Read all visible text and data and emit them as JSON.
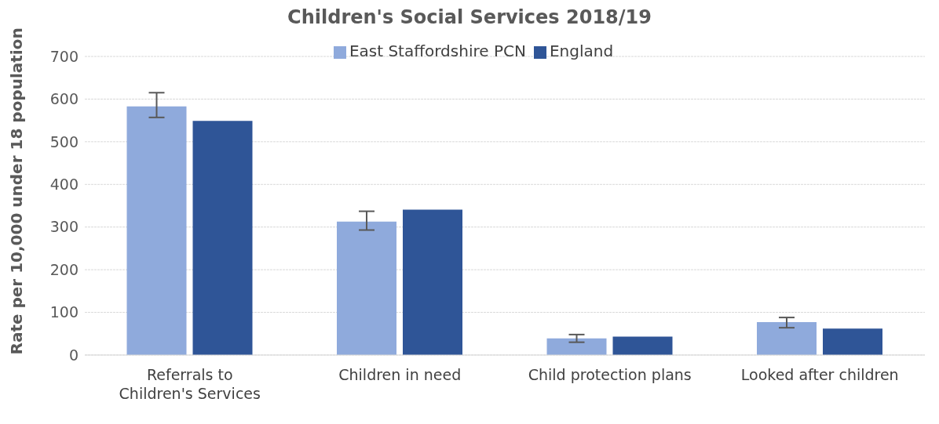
{
  "chart_data": {
    "type": "bar",
    "title": "Children's Social Services 2018/19",
    "ylabel": "Rate per 10,000 under 18 population",
    "categories": [
      "Referrals to Children's Services",
      "Children in need",
      "Child protection plans",
      "Looked after children"
    ],
    "series": [
      {
        "name": "East Staffordshire PCN",
        "color": "#8faadc",
        "values": [
          583,
          313,
          39,
          77
        ],
        "errors": [
          [
            557,
            615
          ],
          [
            293,
            337
          ],
          [
            30,
            48
          ],
          [
            64,
            88
          ]
        ]
      },
      {
        "name": "England",
        "color": "#2f5597",
        "values": [
          549,
          341,
          43,
          62
        ]
      }
    ],
    "ylim": [
      0,
      700
    ],
    "yticks": [
      0,
      100,
      200,
      300,
      400,
      500,
      600,
      700
    ],
    "grid": "y",
    "legend": "top"
  }
}
